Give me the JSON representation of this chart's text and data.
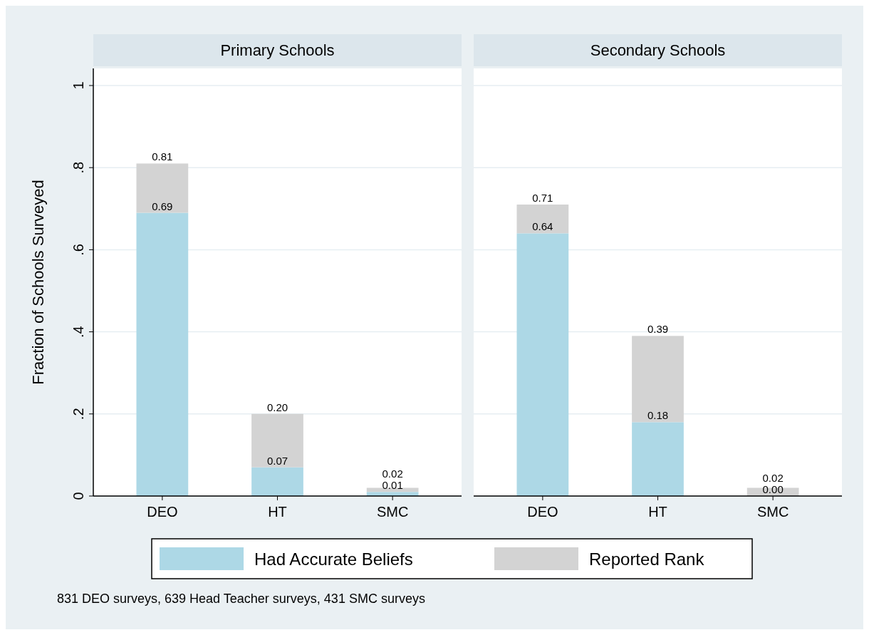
{
  "chart_data": [
    {
      "type": "bar",
      "title": "Primary Schools",
      "ylabel": "Fraction of Schools Surveyed",
      "categories": [
        "DEO",
        "HT",
        "SMC"
      ],
      "stacked": true,
      "ylim": [
        0,
        1
      ],
      "yticks": [
        {
          "value": 0,
          "label": "0"
        },
        {
          "value": 0.2,
          "label": ".2"
        },
        {
          "value": 0.4,
          "label": ".4"
        },
        {
          "value": 0.6,
          "label": ".6"
        },
        {
          "value": 0.8,
          "label": ".8"
        },
        {
          "value": 1,
          "label": "1"
        }
      ],
      "grid": "y",
      "legend": "bottom",
      "series": [
        {
          "name": "Had Accurate Beliefs",
          "color": "#add8e6",
          "values": [
            0.69,
            0.07,
            0.01
          ],
          "value_labels": [
            "0.69",
            "0.07",
            "0.01"
          ]
        },
        {
          "name": "Reported Rank",
          "color": "#d3d3d3",
          "values": [
            0.12,
            0.13,
            0.01
          ]
        }
      ],
      "totals": [
        "0.81",
        "0.20",
        "0.02"
      ],
      "annotations": [
        "831 DEO surveys, 639 Head Teacher surveys, 431 SMC surveys"
      ]
    },
    {
      "type": "bar",
      "title": "Secondary Schools",
      "categories": [
        "DEO",
        "HT",
        "SMC"
      ],
      "stacked": true,
      "ylim": [
        0,
        1
      ],
      "yticks": [
        0,
        0.2,
        0.4,
        0.6,
        0.8,
        1
      ],
      "grid": "y",
      "tick_labels": "x",
      "series": [
        {
          "color": "#add8e6",
          "values": [
            0.64,
            0.18,
            0.0
          ],
          "value_labels": [
            "0.64",
            "0.18",
            "0.00"
          ]
        },
        {
          "color": "#d3d3d3",
          "values": [
            0.07,
            0.21,
            0.02
          ]
        }
      ],
      "totals": [
        "0.71",
        "0.39",
        "0.02"
      ]
    }
  ]
}
